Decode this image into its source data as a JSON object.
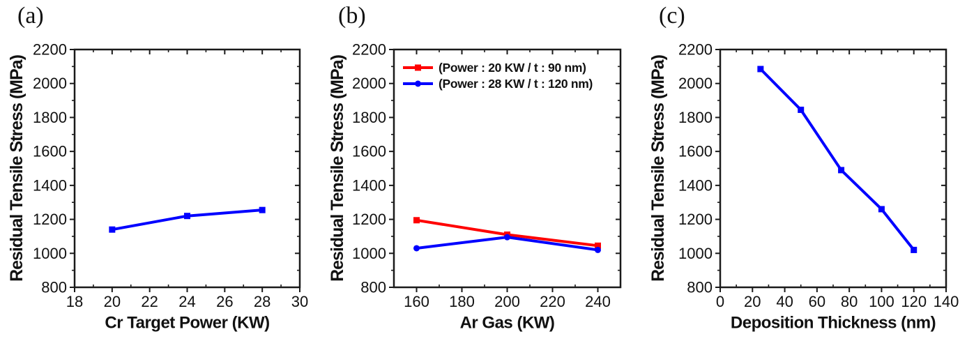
{
  "figure": {
    "background": "#ffffff",
    "ink_color": "#1a1a1a",
    "text_color": "#111111"
  },
  "panels": [
    {
      "label": "(a)"
    },
    {
      "label": "(b)"
    },
    {
      "label": "(c)"
    }
  ],
  "chart_data": [
    {
      "type": "line",
      "title": "",
      "xlabel": "Cr Target Power (KW)",
      "ylabel": "Residual Tensile Stress (MPa)",
      "xlim": [
        18,
        30
      ],
      "ylim": [
        800,
        2200
      ],
      "xticks": [
        18,
        20,
        22,
        24,
        26,
        28,
        30
      ],
      "yticks": [
        800,
        1000,
        1200,
        1400,
        1600,
        1800,
        2000,
        2200
      ],
      "grid": false,
      "legend_position": "none",
      "series": [
        {
          "name": "",
          "color": "#0000ff",
          "marker": "square",
          "x": [
            20,
            24,
            28
          ],
          "y": [
            1140,
            1220,
            1255
          ]
        }
      ]
    },
    {
      "type": "line",
      "title": "",
      "xlabel": "Ar Gas (KW)",
      "ylabel": "Residual Tensile Stress (MPa)",
      "xlim": [
        150,
        250
      ],
      "ylim": [
        800,
        2200
      ],
      "xticks": [
        160,
        180,
        200,
        220,
        240
      ],
      "yticks": [
        800,
        1000,
        1200,
        1400,
        1600,
        1800,
        2000,
        2200
      ],
      "grid": false,
      "legend_position": "top-left-inside",
      "series": [
        {
          "name": "(Power : 20 KW  /  t : 90 nm)",
          "color": "#ff0000",
          "marker": "square",
          "x": [
            160,
            200,
            240
          ],
          "y": [
            1195,
            1110,
            1045
          ]
        },
        {
          "name": "(Power : 28 KW  /  t : 120 nm)",
          "color": "#0000ff",
          "marker": "circle",
          "x": [
            160,
            200,
            240
          ],
          "y": [
            1030,
            1095,
            1020
          ]
        }
      ]
    },
    {
      "type": "line",
      "title": "",
      "xlabel": "Deposition Thickness (nm)",
      "ylabel": "Residual Tensile Stress (MPa)",
      "xlim": [
        0,
        140
      ],
      "ylim": [
        800,
        2200
      ],
      "xticks": [
        0,
        20,
        40,
        60,
        80,
        100,
        120,
        140
      ],
      "yticks": [
        800,
        1000,
        1200,
        1400,
        1600,
        1800,
        2000,
        2200
      ],
      "grid": false,
      "legend_position": "none",
      "series": [
        {
          "name": "",
          "color": "#0000ff",
          "marker": "square",
          "x": [
            25,
            50,
            75,
            100,
            120
          ],
          "y": [
            2085,
            1845,
            1490,
            1260,
            1020
          ]
        }
      ]
    }
  ]
}
